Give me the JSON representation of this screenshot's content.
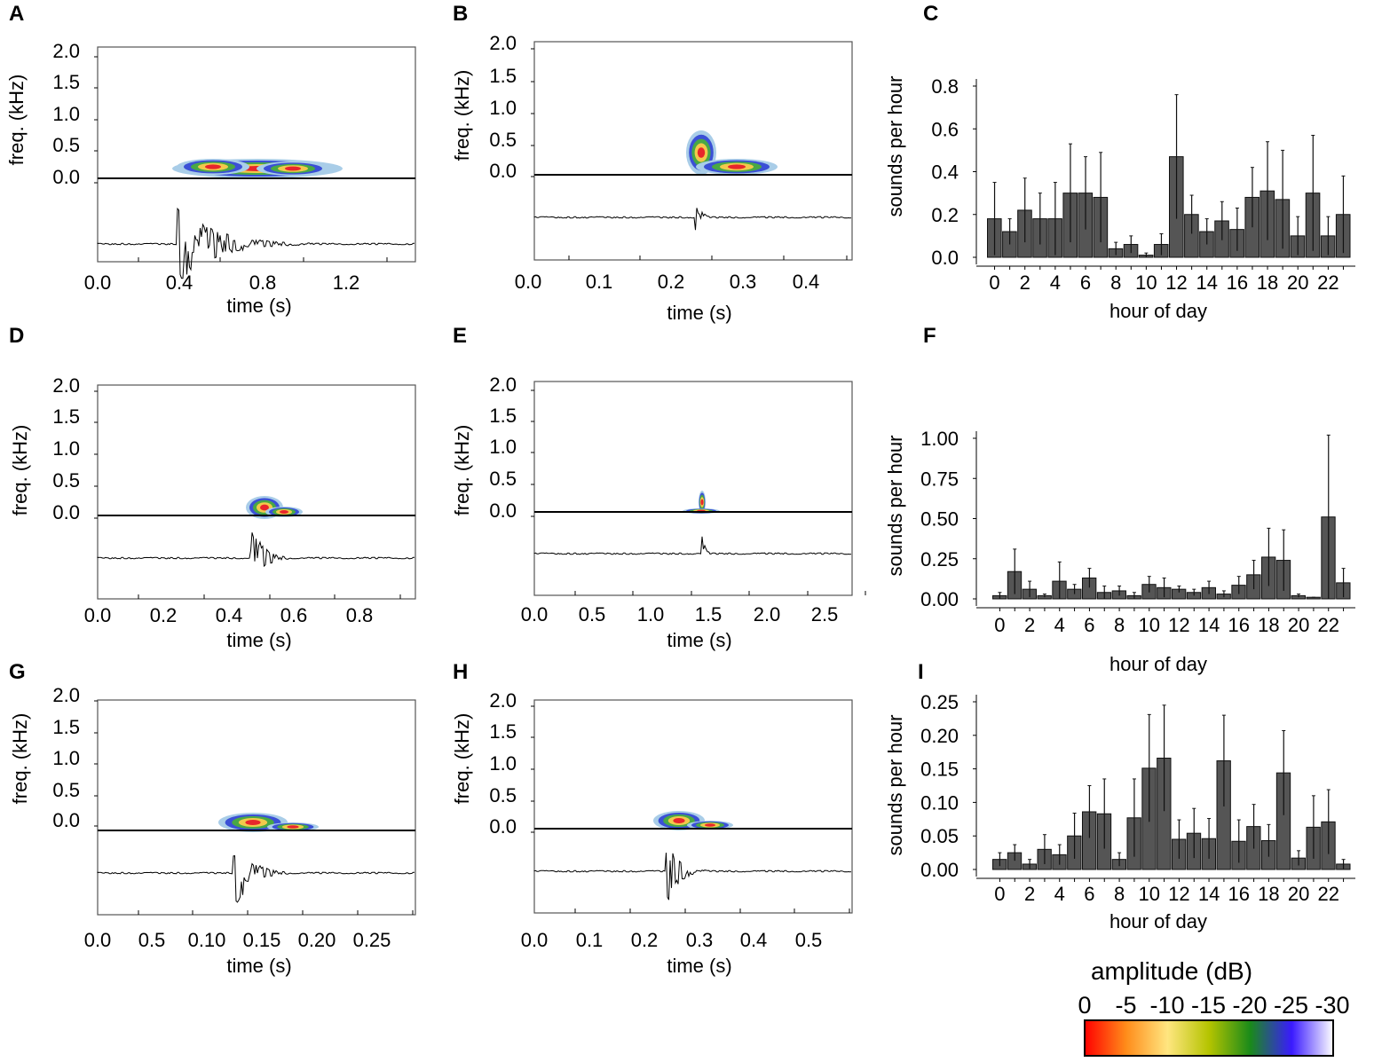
{
  "spectrogram_panels": [
    {
      "id": "A",
      "freq_label": "freq. (kHz)",
      "freq_ticks": [
        "2.0",
        "1.5",
        "1.0",
        "0.5",
        "0.0"
      ],
      "time_ticks": [
        "0.0",
        "0.4",
        "0.8",
        "1.2"
      ],
      "xlabel": "time (s)"
    },
    {
      "id": "B",
      "freq_label": "freq. (kHz)",
      "freq_ticks": [
        "2.0",
        "1.5",
        "1.0",
        "0.5",
        "0.0"
      ],
      "time_ticks": [
        "0.0",
        "0.1",
        "0.2",
        "0.3",
        "0.4"
      ],
      "xlabel": "time (s)"
    },
    {
      "id": "D",
      "freq_label": "freq. (kHz)",
      "freq_ticks": [
        "2.0",
        "1.5",
        "1.0",
        "0.5",
        "0.0"
      ],
      "time_ticks": [
        "0.0",
        "0.2",
        "0.4",
        "0.6",
        "0.8"
      ],
      "xlabel": "time (s)"
    },
    {
      "id": "E",
      "freq_label": "freq. (kHz)",
      "freq_ticks": [
        "2.0",
        "1.5",
        "1.0",
        "0.5",
        "0.0"
      ],
      "time_ticks": [
        "0.0",
        "0.5",
        "1.0",
        "1.5",
        "2.0",
        "2.5"
      ],
      "xlabel": "time (s)"
    },
    {
      "id": "G",
      "freq_label": "freq. (kHz)",
      "freq_ticks": [
        "2.0",
        "1.5",
        "1.0",
        "0.5",
        "0.0"
      ],
      "time_ticks": [
        "0.0",
        "0.5",
        "0.10",
        "0.15",
        "0.20",
        "0.25"
      ],
      "xlabel": "time (s)"
    },
    {
      "id": "H",
      "freq_label": "freq. (kHz)",
      "freq_ticks": [
        "2.0",
        "1.5",
        "1.0",
        "0.5",
        "0.0"
      ],
      "time_ticks": [
        "0.0",
        "0.1",
        "0.2",
        "0.3",
        "0.4",
        "0.5"
      ],
      "xlabel": "time (s)"
    }
  ],
  "chart_data": [
    {
      "id": "C",
      "type": "bar",
      "xlabel": "hour of day",
      "ylabel": "sounds per hour",
      "ylim": [
        0,
        0.8
      ],
      "yticks": [
        "0.0",
        "0.2",
        "0.4",
        "0.6",
        "0.8"
      ],
      "ytick_values": [
        0,
        0.2,
        0.4,
        0.6,
        0.8
      ],
      "xtick_labels": [
        "0",
        "2",
        "4",
        "6",
        "8",
        "10",
        "12",
        "14",
        "16",
        "18",
        "20",
        "22"
      ],
      "categories": [
        0,
        1,
        2,
        3,
        4,
        5,
        6,
        7,
        8,
        9,
        10,
        11,
        12,
        13,
        14,
        15,
        16,
        17,
        18,
        19,
        20,
        21,
        22,
        23
      ],
      "values": [
        0.18,
        0.12,
        0.22,
        0.18,
        0.18,
        0.3,
        0.3,
        0.28,
        0.04,
        0.06,
        0.01,
        0.06,
        0.47,
        0.2,
        0.12,
        0.17,
        0.13,
        0.28,
        0.31,
        0.27,
        0.1,
        0.3,
        0.1,
        0.2
      ],
      "error_upper": [
        0.35,
        0.18,
        0.37,
        0.3,
        0.35,
        0.53,
        0.47,
        0.49,
        0.07,
        0.1,
        0.02,
        0.11,
        0.76,
        0.29,
        0.18,
        0.26,
        0.23,
        0.42,
        0.54,
        0.5,
        0.19,
        0.57,
        0.19,
        0.38
      ]
    },
    {
      "id": "F",
      "type": "bar",
      "xlabel": "hour of day",
      "ylabel": "sounds per hour",
      "ylim": [
        0,
        1.0
      ],
      "yticks": [
        "0.00",
        "0.25",
        "0.50",
        "0.75",
        "1.00"
      ],
      "ytick_values": [
        0,
        0.25,
        0.5,
        0.75,
        1.0
      ],
      "xtick_labels": [
        "0",
        "2",
        "4",
        "6",
        "8",
        "10",
        "12",
        "14",
        "16",
        "18",
        "20",
        "22"
      ],
      "categories": [
        0,
        1,
        2,
        3,
        4,
        5,
        6,
        7,
        8,
        9,
        10,
        11,
        12,
        13,
        14,
        15,
        16,
        17,
        18,
        19,
        20,
        21,
        22,
        23
      ],
      "values": [
        0.02,
        0.17,
        0.06,
        0.02,
        0.11,
        0.06,
        0.13,
        0.04,
        0.05,
        0.02,
        0.09,
        0.07,
        0.06,
        0.04,
        0.07,
        0.03,
        0.085,
        0.15,
        0.26,
        0.24,
        0.02,
        0.01,
        0.51,
        0.1
      ],
      "error_upper": [
        0.04,
        0.31,
        0.11,
        0.03,
        0.23,
        0.09,
        0.19,
        0.08,
        0.08,
        0.04,
        0.14,
        0.13,
        0.08,
        0.06,
        0.11,
        0.05,
        0.14,
        0.24,
        0.44,
        0.43,
        0.03,
        0.01,
        1.02,
        0.19
      ]
    },
    {
      "id": "I",
      "type": "bar",
      "xlabel": "hour of day",
      "ylabel": "sounds per hour",
      "ylim": [
        0,
        0.25
      ],
      "yticks": [
        "0.00",
        "0.05",
        "0.10",
        "0.15",
        "0.20",
        "0.25"
      ],
      "ytick_values": [
        0,
        0.05,
        0.1,
        0.15,
        0.2,
        0.25
      ],
      "xtick_labels": [
        "0",
        "2",
        "4",
        "6",
        "8",
        "10",
        "12",
        "14",
        "16",
        "18",
        "20",
        "22"
      ],
      "categories": [
        0,
        1,
        2,
        3,
        4,
        5,
        6,
        7,
        8,
        9,
        10,
        11,
        12,
        13,
        14,
        15,
        16,
        17,
        18,
        19,
        20,
        21,
        22,
        23
      ],
      "values": [
        0.015,
        0.025,
        0.008,
        0.03,
        0.022,
        0.05,
        0.086,
        0.083,
        0.015,
        0.077,
        0.151,
        0.166,
        0.045,
        0.054,
        0.046,
        0.162,
        0.042,
        0.064,
        0.043,
        0.144,
        0.017,
        0.063,
        0.071,
        0.008
      ],
      "error_upper": [
        0.025,
        0.037,
        0.015,
        0.052,
        0.037,
        0.084,
        0.125,
        0.135,
        0.025,
        0.135,
        0.231,
        0.245,
        0.074,
        0.091,
        0.076,
        0.23,
        0.074,
        0.097,
        0.067,
        0.207,
        0.028,
        0.11,
        0.119,
        0.015
      ]
    }
  ],
  "legend": {
    "title": "amplitude (dB)",
    "labels": [
      "0",
      "-5",
      "-10",
      "-15",
      "-20",
      "-25",
      "-30"
    ],
    "colors": [
      "#ff0000",
      "#ff8c1a",
      "#ffe680",
      "#b5c400",
      "#1a8a1a",
      "#3a1aff",
      "#ffffff"
    ]
  },
  "colors": {
    "bar": "#555555",
    "spec_hot": "#e8262b",
    "spec_mid": "#f2c94c",
    "spec_green": "#49a845",
    "spec_blue": "#3b50d6",
    "spec_light": "#a9cde8"
  }
}
